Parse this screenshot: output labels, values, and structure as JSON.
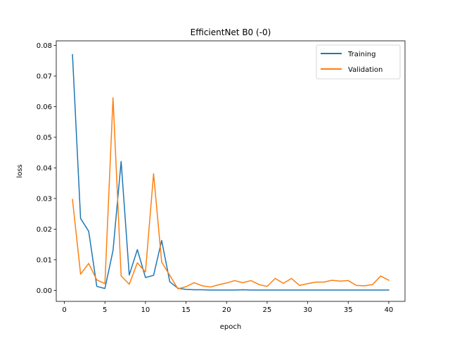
{
  "chart_data": {
    "type": "line",
    "title": "EfficientNet B0 (-0)",
    "xlabel": "epoch",
    "ylabel": "loss",
    "xlim": [
      -1.0,
      42.0
    ],
    "ylim": [
      -0.0036,
      0.0815
    ],
    "xticks": [
      0,
      5,
      10,
      15,
      20,
      25,
      30,
      35,
      40
    ],
    "yticks": [
      0.0,
      0.01,
      0.02,
      0.03,
      0.04,
      0.05,
      0.06,
      0.07,
      0.08
    ],
    "ytick_labels": [
      "0.00",
      "0.01",
      "0.02",
      "0.03",
      "0.04",
      "0.05",
      "0.06",
      "0.07",
      "0.08"
    ],
    "legend_position": "top-right",
    "x": [
      1,
      2,
      3,
      4,
      5,
      6,
      7,
      8,
      9,
      10,
      11,
      12,
      13,
      14,
      15,
      16,
      17,
      18,
      19,
      20,
      21,
      22,
      23,
      24,
      25,
      26,
      27,
      28,
      29,
      30,
      31,
      32,
      33,
      34,
      35,
      36,
      37,
      38,
      39,
      40
    ],
    "series": [
      {
        "name": "Training",
        "color": "#1f77b4",
        "values": [
          0.077,
          0.0235,
          0.0193,
          0.0013,
          0.0006,
          0.013,
          0.0421,
          0.005,
          0.0133,
          0.0042,
          0.0049,
          0.0163,
          0.0028,
          0.0007,
          0.0003,
          0.0002,
          0.0002,
          0.0001,
          0.0001,
          0.0001,
          0.0001,
          0.0002,
          0.0001,
          0.0001,
          0.0001,
          0.0001,
          0.0001,
          0.0001,
          0.0001,
          0.0001,
          0.0001,
          0.0001,
          0.0001,
          0.0001,
          0.0001,
          0.0001,
          0.0001,
          0.0001,
          0.0001,
          0.0001
        ]
      },
      {
        "name": "Validation",
        "color": "#ff7f0e",
        "values": [
          0.0297,
          0.0053,
          0.0088,
          0.0034,
          0.0022,
          0.0629,
          0.0047,
          0.002,
          0.009,
          0.006,
          0.0381,
          0.0092,
          0.0049,
          0.0005,
          0.0012,
          0.0025,
          0.0015,
          0.0011,
          0.0018,
          0.0024,
          0.0032,
          0.0025,
          0.0032,
          0.0019,
          0.0013,
          0.0039,
          0.0023,
          0.0039,
          0.0016,
          0.0022,
          0.0027,
          0.0027,
          0.0033,
          0.003,
          0.0032,
          0.0016,
          0.0015,
          0.0019,
          0.0047,
          0.0033
        ]
      }
    ]
  }
}
